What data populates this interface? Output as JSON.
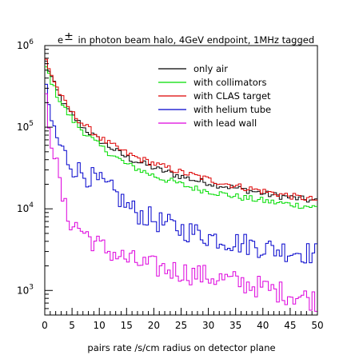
{
  "chart_data": {
    "type": "line",
    "style": "step-histogram",
    "title_prefix": "e",
    "title_sup": "±",
    "title_rest": " in photon beam halo, 4GeV endpoint, 1MHz tagged",
    "xlabel": "pairs rate /s/cm radius on detector plane",
    "ylabel": "",
    "xlim": [
      0,
      50
    ],
    "ylim": [
      500,
      1000000
    ],
    "yscale": "log",
    "x_ticks": [
      0,
      5,
      10,
      15,
      20,
      25,
      30,
      35,
      40,
      45,
      50
    ],
    "y_ticks": [
      {
        "value": 1000,
        "mantissa": "10",
        "exp": "3"
      },
      {
        "value": 10000,
        "mantissa": "10",
        "exp": "4"
      },
      {
        "value": 100000,
        "mantissa": "10",
        "exp": "5"
      },
      {
        "value": 1000000,
        "mantissa": "10",
        "exp": "6"
      }
    ],
    "legend_position": "top-right",
    "series": [
      {
        "name": "only air",
        "color": "#000000",
        "x": [
          0,
          1,
          2,
          3,
          4,
          5,
          6,
          7,
          8,
          9,
          10,
          11,
          12,
          13,
          14,
          15,
          16,
          17,
          18,
          19,
          20,
          21,
          22,
          23,
          24,
          25,
          26,
          27,
          28,
          29,
          30,
          31,
          32,
          33,
          34,
          35,
          36,
          37,
          38,
          39,
          40,
          41,
          42,
          43,
          44,
          45,
          46,
          47,
          48,
          49,
          50
        ],
        "values": [
          700000,
          450000,
          300000,
          220000,
          170000,
          140000,
          120000,
          100000,
          88000,
          78000,
          70000,
          62000,
          57000,
          52000,
          47000,
          43000,
          40000,
          38000,
          36000,
          34000,
          32000,
          30000,
          29000,
          27500,
          26000,
          25000,
          24000,
          23000,
          22000,
          21500,
          21000,
          20000,
          19500,
          19000,
          18500,
          18000,
          17500,
          17000,
          16500,
          16000,
          15500,
          15000,
          14700,
          14400,
          14100,
          13800,
          13500,
          13200,
          12900,
          12600,
          12300
        ]
      },
      {
        "name": "with collimators",
        "color": "#00dd00",
        "x": [
          0,
          1,
          2,
          3,
          4,
          5,
          6,
          7,
          8,
          9,
          10,
          11,
          12,
          13,
          14,
          15,
          16,
          17,
          18,
          19,
          20,
          21,
          22,
          23,
          24,
          25,
          26,
          27,
          28,
          29,
          30,
          31,
          32,
          33,
          34,
          35,
          36,
          37,
          38,
          39,
          40,
          41,
          42,
          43,
          44,
          45,
          46,
          47,
          48,
          49,
          50
        ],
        "values": [
          600000,
          400000,
          270000,
          200000,
          155000,
          125000,
          105000,
          90000,
          78000,
          68000,
          60000,
          53000,
          48000,
          43000,
          39000,
          35000,
          33000,
          31000,
          29000,
          27000,
          25500,
          24000,
          23000,
          22000,
          21000,
          20000,
          19000,
          18200,
          17500,
          17000,
          16500,
          16000,
          15500,
          15000,
          14600,
          14200,
          13800,
          13500,
          13200,
          12900,
          12600,
          12300,
          12000,
          11800,
          11600,
          11400,
          11200,
          11000,
          10800,
          10600,
          10400
        ]
      },
      {
        "name": "with CLAS target",
        "color": "#dd0000",
        "x": [
          0,
          1,
          2,
          3,
          4,
          5,
          6,
          7,
          8,
          9,
          10,
          11,
          12,
          13,
          14,
          15,
          16,
          17,
          18,
          19,
          20,
          21,
          22,
          23,
          24,
          25,
          26,
          27,
          28,
          29,
          30,
          31,
          32,
          33,
          34,
          35,
          36,
          37,
          38,
          39,
          40,
          41,
          42,
          43,
          44,
          45,
          46,
          47,
          48,
          49,
          50
        ],
        "values": [
          750000,
          480000,
          330000,
          240000,
          185000,
          150000,
          128000,
          110000,
          96000,
          85000,
          76000,
          68000,
          62000,
          57000,
          52000,
          48000,
          45000,
          42000,
          40000,
          38000,
          36000,
          34000,
          32500,
          31000,
          29500,
          28000,
          27000,
          26000,
          25000,
          24000,
          23000,
          22000,
          21200,
          20500,
          19800,
          19200,
          18600,
          18000,
          17500,
          17000,
          16500,
          16000,
          15600,
          15200,
          14800,
          14400,
          14000,
          13700,
          13400,
          13100,
          12800
        ]
      },
      {
        "name": "with helium tube",
        "color": "#0000cc",
        "x": [
          0,
          1,
          2,
          3,
          4,
          5,
          6,
          7,
          8,
          9,
          10,
          11,
          12,
          13,
          14,
          15,
          16,
          17,
          18,
          19,
          20,
          21,
          22,
          23,
          24,
          25,
          26,
          27,
          28,
          29,
          30,
          31,
          32,
          33,
          34,
          35,
          36,
          37,
          38,
          39,
          40,
          41,
          42,
          43,
          44,
          45,
          46,
          47,
          48,
          49,
          50
        ],
        "values": [
          300000,
          140000,
          80000,
          55000,
          42000,
          34000,
          30000,
          27000,
          25000,
          23000,
          21000,
          19000,
          17000,
          15000,
          13000,
          11000,
          9800,
          9000,
          8300,
          7800,
          7300,
          6900,
          6500,
          6200,
          5900,
          5600,
          5400,
          5200,
          5000,
          4800,
          4600,
          4450,
          4300,
          4150,
          4000,
          3900,
          3800,
          3700,
          3600,
          3500,
          3400,
          3300,
          3200,
          3150,
          3100,
          3050,
          3000,
          2950,
          2900,
          2850,
          2800
        ]
      },
      {
        "name": "with lead wall",
        "color": "#dd00dd",
        "x": [
          0,
          1,
          2,
          3,
          4,
          5,
          6,
          7,
          8,
          9,
          10,
          11,
          12,
          13,
          14,
          15,
          16,
          17,
          18,
          19,
          20,
          21,
          22,
          23,
          24,
          25,
          26,
          27,
          28,
          29,
          30,
          31,
          32,
          33,
          34,
          35,
          36,
          37,
          38,
          39,
          40,
          41,
          42,
          43,
          44,
          45,
          46,
          47,
          48,
          49,
          50
        ],
        "values": [
          280000,
          90000,
          40000,
          16000,
          8500,
          6800,
          6000,
          5300,
          4600,
          4000,
          3500,
          3200,
          3000,
          2800,
          2600,
          2400,
          2300,
          2200,
          2100,
          2000,
          1950,
          1900,
          1850,
          1800,
          1750,
          1700,
          1650,
          1600,
          1560,
          1520,
          1480,
          1440,
          1400,
          1360,
          1320,
          1280,
          1240,
          1200,
          1160,
          1120,
          1080,
          1040,
          1000,
          960,
          930,
          900,
          870,
          840,
          810,
          780,
          750
        ]
      }
    ]
  }
}
